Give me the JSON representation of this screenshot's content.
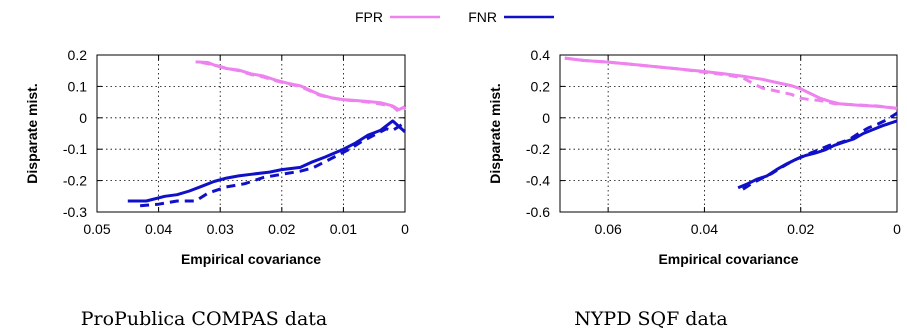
{
  "legend": {
    "entries": [
      {
        "label": "FPR",
        "color": "#ee82ee"
      },
      {
        "label": "FNR",
        "color": "#1010c8"
      }
    ]
  },
  "chart_data": [
    {
      "type": "line",
      "caption": "ProPublica COMPAS data",
      "xlabel": "Empirical covariance",
      "ylabel": "Disparate mist.",
      "xlim": [
        0.05,
        0
      ],
      "ylim": [
        -0.3,
        0.2
      ],
      "x_reversed": true,
      "grid": true,
      "legend_placement": "top-center",
      "xticks": [
        0.05,
        0.04,
        0.03,
        0.02,
        0.01,
        0
      ],
      "xtick_labels": [
        "0.05",
        "0.04",
        "0.03",
        "0.02",
        "0.01",
        "0"
      ],
      "yticks": [
        0.2,
        0.1,
        0,
        -0.1,
        -0.2,
        -0.3
      ],
      "ytick_labels": [
        "0.2",
        "0.1",
        "0",
        "-0.1",
        "-0.2",
        "-0.3"
      ],
      "series": [
        {
          "name": "FPR",
          "color": "#ee82ee",
          "dash": false,
          "points": [
            [
              0.034,
              0.178
            ],
            [
              0.032,
              0.176
            ],
            [
              0.031,
              0.168
            ],
            [
              0.029,
              0.157
            ],
            [
              0.027,
              0.152
            ],
            [
              0.025,
              0.14
            ],
            [
              0.023,
              0.133
            ],
            [
              0.021,
              0.12
            ],
            [
              0.019,
              0.11
            ],
            [
              0.017,
              0.102
            ],
            [
              0.016,
              0.093
            ],
            [
              0.014,
              0.075
            ],
            [
              0.012,
              0.064
            ],
            [
              0.01,
              0.058
            ],
            [
              0.008,
              0.055
            ],
            [
              0.006,
              0.052
            ],
            [
              0.004,
              0.048
            ],
            [
              0.002,
              0.038
            ],
            [
              0.001,
              0.026
            ],
            [
              0.0,
              0.035
            ]
          ]
        },
        {
          "name": "FPR",
          "color": "#ee82ee",
          "dash": true,
          "points": [
            [
              0.033,
              0.176
            ],
            [
              0.031,
              0.168
            ],
            [
              0.029,
              0.158
            ],
            [
              0.027,
              0.15
            ],
            [
              0.025,
              0.138
            ],
            [
              0.023,
              0.13
            ],
            [
              0.021,
              0.118
            ],
            [
              0.019,
              0.108
            ],
            [
              0.017,
              0.1
            ],
            [
              0.016,
              0.091
            ],
            [
              0.014,
              0.073
            ],
            [
              0.012,
              0.063
            ],
            [
              0.01,
              0.057
            ],
            [
              0.008,
              0.054
            ],
            [
              0.006,
              0.05
            ],
            [
              0.004,
              0.044
            ],
            [
              0.002,
              0.036
            ],
            [
              0.001,
              0.02
            ],
            [
              0.0,
              0.03
            ]
          ]
        },
        {
          "name": "FNR",
          "color": "#1010c8",
          "dash": false,
          "points": [
            [
              0.045,
              -0.265
            ],
            [
              0.042,
              -0.265
            ],
            [
              0.039,
              -0.25
            ],
            [
              0.037,
              -0.245
            ],
            [
              0.035,
              -0.233
            ],
            [
              0.033,
              -0.218
            ],
            [
              0.031,
              -0.203
            ],
            [
              0.029,
              -0.192
            ],
            [
              0.027,
              -0.185
            ],
            [
              0.025,
              -0.18
            ],
            [
              0.022,
              -0.173
            ],
            [
              0.02,
              -0.165
            ],
            [
              0.017,
              -0.158
            ],
            [
              0.015,
              -0.14
            ],
            [
              0.013,
              -0.125
            ],
            [
              0.01,
              -0.1
            ],
            [
              0.008,
              -0.08
            ],
            [
              0.006,
              -0.055
            ],
            [
              0.004,
              -0.04
            ],
            [
              0.002,
              -0.01
            ],
            [
              0.0,
              -0.045
            ]
          ]
        },
        {
          "name": "FNR",
          "color": "#1010c8",
          "dash": true,
          "points": [
            [
              0.043,
              -0.28
            ],
            [
              0.04,
              -0.275
            ],
            [
              0.037,
              -0.265
            ],
            [
              0.034,
              -0.265
            ],
            [
              0.032,
              -0.24
            ],
            [
              0.029,
              -0.22
            ],
            [
              0.026,
              -0.21
            ],
            [
              0.023,
              -0.19
            ],
            [
              0.02,
              -0.18
            ],
            [
              0.017,
              -0.17
            ],
            [
              0.015,
              -0.16
            ],
            [
              0.013,
              -0.14
            ],
            [
              0.011,
              -0.12
            ],
            [
              0.009,
              -0.1
            ],
            [
              0.007,
              -0.075
            ],
            [
              0.005,
              -0.055
            ],
            [
              0.003,
              -0.035
            ],
            [
              0.002,
              -0.04
            ],
            [
              0.0,
              -0.015
            ]
          ]
        }
      ]
    },
    {
      "type": "line",
      "caption": "NYPD SQF data",
      "xlabel": "Empirical covariance",
      "ylabel": "Disparate mist.",
      "xlim": [
        0.07,
        0
      ],
      "ylim": [
        -0.6,
        0.4
      ],
      "x_reversed": true,
      "grid": true,
      "xticks": [
        0.06,
        0.04,
        0.02,
        0
      ],
      "xtick_labels": [
        "0.06",
        "0.04",
        "0.02",
        "0"
      ],
      "yticks": [
        0.4,
        0.2,
        0,
        -0.2,
        -0.4,
        -0.6
      ],
      "ytick_labels": [
        "0.4",
        "0.2",
        "0",
        "-0.2",
        "-0.4",
        "-0.6"
      ],
      "series": [
        {
          "name": "FPR",
          "color": "#ee82ee",
          "dash": false,
          "points": [
            [
              0.069,
              0.38
            ],
            [
              0.065,
              0.365
            ],
            [
              0.06,
              0.355
            ],
            [
              0.055,
              0.34
            ],
            [
              0.05,
              0.325
            ],
            [
              0.045,
              0.31
            ],
            [
              0.04,
              0.295
            ],
            [
              0.036,
              0.28
            ],
            [
              0.032,
              0.265
            ],
            [
              0.028,
              0.245
            ],
            [
              0.025,
              0.225
            ],
            [
              0.022,
              0.205
            ],
            [
              0.02,
              0.185
            ],
            [
              0.018,
              0.155
            ],
            [
              0.016,
              0.125
            ],
            [
              0.014,
              0.105
            ],
            [
              0.012,
              0.09
            ],
            [
              0.01,
              0.085
            ],
            [
              0.008,
              0.08
            ],
            [
              0.005,
              0.075
            ],
            [
              0.003,
              0.07
            ],
            [
              0.0,
              0.06
            ]
          ]
        },
        {
          "name": "FPR",
          "color": "#ee82ee",
          "dash": true,
          "points": [
            [
              0.069,
              0.38
            ],
            [
              0.065,
              0.365
            ],
            [
              0.06,
              0.355
            ],
            [
              0.055,
              0.34
            ],
            [
              0.05,
              0.325
            ],
            [
              0.045,
              0.31
            ],
            [
              0.04,
              0.29
            ],
            [
              0.036,
              0.275
            ],
            [
              0.032,
              0.255
            ],
            [
              0.03,
              0.22
            ],
            [
              0.028,
              0.19
            ],
            [
              0.025,
              0.17
            ],
            [
              0.022,
              0.15
            ],
            [
              0.02,
              0.125
            ],
            [
              0.018,
              0.115
            ],
            [
              0.016,
              0.11
            ],
            [
              0.013,
              0.09
            ],
            [
              0.01,
              0.085
            ],
            [
              0.007,
              0.08
            ],
            [
              0.004,
              0.075
            ],
            [
              0.0,
              0.06
            ]
          ]
        },
        {
          "name": "FNR",
          "color": "#1010c8",
          "dash": false,
          "points": [
            [
              0.033,
              -0.445
            ],
            [
              0.031,
              -0.42
            ],
            [
              0.029,
              -0.39
            ],
            [
              0.027,
              -0.37
            ],
            [
              0.025,
              -0.33
            ],
            [
              0.023,
              -0.295
            ],
            [
              0.021,
              -0.265
            ],
            [
              0.019,
              -0.24
            ],
            [
              0.017,
              -0.225
            ],
            [
              0.015,
              -0.205
            ],
            [
              0.013,
              -0.175
            ],
            [
              0.011,
              -0.155
            ],
            [
              0.009,
              -0.135
            ],
            [
              0.007,
              -0.1
            ],
            [
              0.005,
              -0.075
            ],
            [
              0.003,
              -0.05
            ],
            [
              0.0,
              -0.02
            ]
          ]
        },
        {
          "name": "FNR",
          "color": "#1010c8",
          "dash": true,
          "points": [
            [
              0.032,
              -0.455
            ],
            [
              0.03,
              -0.415
            ],
            [
              0.028,
              -0.385
            ],
            [
              0.026,
              -0.355
            ],
            [
              0.024,
              -0.315
            ],
            [
              0.022,
              -0.28
            ],
            [
              0.02,
              -0.25
            ],
            [
              0.018,
              -0.225
            ],
            [
              0.016,
              -0.2
            ],
            [
              0.014,
              -0.175
            ],
            [
              0.012,
              -0.16
            ],
            [
              0.01,
              -0.14
            ],
            [
              0.008,
              -0.1
            ],
            [
              0.006,
              -0.065
            ],
            [
              0.004,
              -0.04
            ],
            [
              0.002,
              -0.01
            ],
            [
              0.0,
              0.03
            ]
          ]
        }
      ]
    }
  ]
}
